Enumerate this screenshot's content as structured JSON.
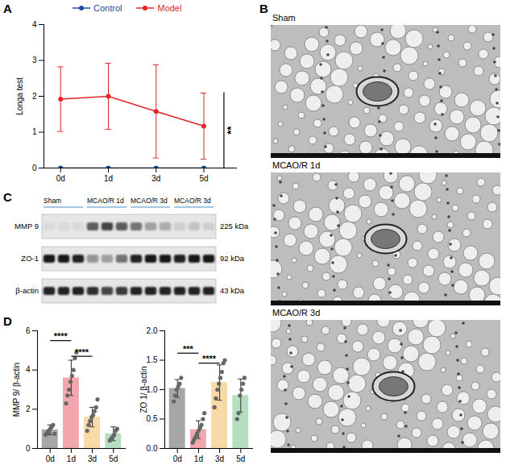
{
  "chart_data": [
    {
      "panel": "A",
      "type": "line",
      "categories": [
        "0d",
        "1d",
        "3d",
        "5d"
      ],
      "y_label": "Longa test",
      "ylim": [
        0,
        4
      ],
      "yticks": [
        0,
        1,
        2,
        3,
        4
      ],
      "legend": "top",
      "series": [
        {
          "name": "Control",
          "color": "#1f4e9c",
          "marker": "circle",
          "values": [
            0,
            0,
            0,
            0
          ],
          "error": [
            0,
            0,
            0,
            0
          ]
        },
        {
          "name": "Model",
          "color": "#e0262b",
          "marker": "circle",
          "values": [
            1.92,
            2.0,
            1.58,
            1.17
          ],
          "error": [
            0.9,
            0.92,
            1.3,
            0.92
          ]
        }
      ],
      "annotations": [
        {
          "text": "**",
          "y1": 0,
          "y2": 2.1
        }
      ]
    },
    {
      "panel": "D",
      "type": "bar",
      "categories": [
        "0d",
        "1d",
        "3d",
        "5d"
      ],
      "y_label": "MMP 9/ β-actin",
      "ylim": [
        0,
        6
      ],
      "yticks": [
        0,
        2,
        4,
        6
      ],
      "colors": [
        "#a6a6a6",
        "#f2a7ad",
        "#f8d9a8",
        "#b5dfc0"
      ],
      "values": [
        0.95,
        3.6,
        1.6,
        0.75
      ],
      "error": [
        0.25,
        0.9,
        0.5,
        0.35
      ],
      "points": [
        [
          0.7,
          0.8,
          0.9,
          1.0,
          1.1,
          1.2,
          0.75
        ],
        [
          2.3,
          2.7,
          3.0,
          3.4,
          3.7,
          4.0,
          4.6,
          4.9
        ],
        [
          0.9,
          1.2,
          1.4,
          1.6,
          1.7,
          1.9,
          2.1,
          2.5
        ],
        [
          0.4,
          0.5,
          0.6,
          0.7,
          0.9,
          1.0
        ]
      ],
      "annotations": [
        {
          "from": "0d",
          "to": "1d",
          "y": 5.5,
          "text": "****"
        },
        {
          "from": "1d",
          "to": "3d",
          "y": 4.7,
          "text": "****"
        }
      ]
    },
    {
      "type": "bar",
      "categories": [
        "0d",
        "1d",
        "3d",
        "5d"
      ],
      "y_label": "ZO 1/ β-actin",
      "ylim": [
        0,
        2
      ],
      "yticks": [
        {
          "value": 0,
          "label": "0.0"
        },
        0.5,
        {
          "value": 1,
          "label": "1.0"
        },
        1.5,
        {
          "value": 2,
          "label": "2.0"
        }
      ],
      "colors": [
        "#a6a6a6",
        "#f2a7ad",
        "#f8d9a8",
        "#b5dfc0"
      ],
      "values": [
        1.02,
        0.32,
        1.12,
        0.9
      ],
      "error": [
        0.15,
        0.15,
        0.3,
        0.28
      ],
      "points": [
        [
          0.8,
          0.9,
          1.0,
          1.05,
          1.1,
          1.2
        ],
        [
          0.1,
          0.15,
          0.2,
          0.25,
          0.3,
          0.35,
          0.4,
          0.5,
          0.6
        ],
        [
          0.7,
          0.85,
          1.0,
          1.1,
          1.2,
          1.3,
          1.45,
          1.5
        ],
        [
          0.5,
          0.6,
          0.9,
          1.0,
          1.1,
          1.2
        ]
      ],
      "annotations": [
        {
          "from": "0d",
          "to": "1d",
          "y": 1.62,
          "text": "***"
        },
        {
          "from": "1d",
          "to": "3d",
          "y": 1.45,
          "text": "****"
        }
      ]
    }
  ],
  "images": {
    "panel": "B",
    "captions": [
      "Sham",
      "MCAO/R 1d",
      "MCAO/R 3d"
    ]
  },
  "blot": {
    "panel": "C",
    "lane_groups": [
      "Sham",
      "MCAO/R 1d",
      "MCAO/R 3d",
      "MCAO/R 3d"
    ],
    "rows": [
      {
        "label": "MMP 9",
        "kda": "225 kDa",
        "band_intensity": [
          0.05,
          0.05,
          0.05,
          0.6,
          0.7,
          0.6,
          0.5,
          0.3,
          0.25,
          0.1,
          0.15,
          0.1
        ]
      },
      {
        "label": "ZO-1",
        "kda": "92 kDa",
        "band_intensity": [
          0.9,
          0.9,
          0.85,
          0.35,
          0.3,
          0.5,
          0.85,
          0.9,
          0.9,
          0.85,
          0.9,
          0.9
        ]
      },
      {
        "label": "β-actin",
        "kda": "43 kDa",
        "band_intensity": [
          0.85,
          0.85,
          0.85,
          0.8,
          0.7,
          0.75,
          0.85,
          0.85,
          0.85,
          0.85,
          0.85,
          0.85
        ]
      }
    ]
  }
}
